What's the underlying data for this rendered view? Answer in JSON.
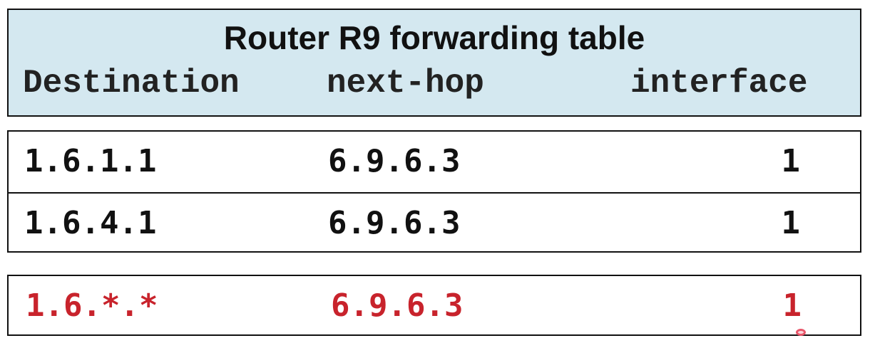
{
  "table": {
    "title": "Router R9 forwarding table",
    "columns": [
      "Destination",
      "next-hop",
      "interface"
    ],
    "rows": [
      {
        "destination": "1.6.1.1",
        "next_hop": "6.9.6.3",
        "interface": "1"
      },
      {
        "destination": "1.6.4.1",
        "next_hop": "6.9.6.3",
        "interface": "1"
      }
    ],
    "aggregated_row": {
      "destination": "1.6.*.*",
      "next_hop": "6.9.6.3",
      "interface": "1"
    }
  },
  "colors": {
    "header_bg": "#d4e8f0",
    "border": "#111111",
    "aggregated_text": "#c8232c",
    "cursor": "#e8566a"
  }
}
